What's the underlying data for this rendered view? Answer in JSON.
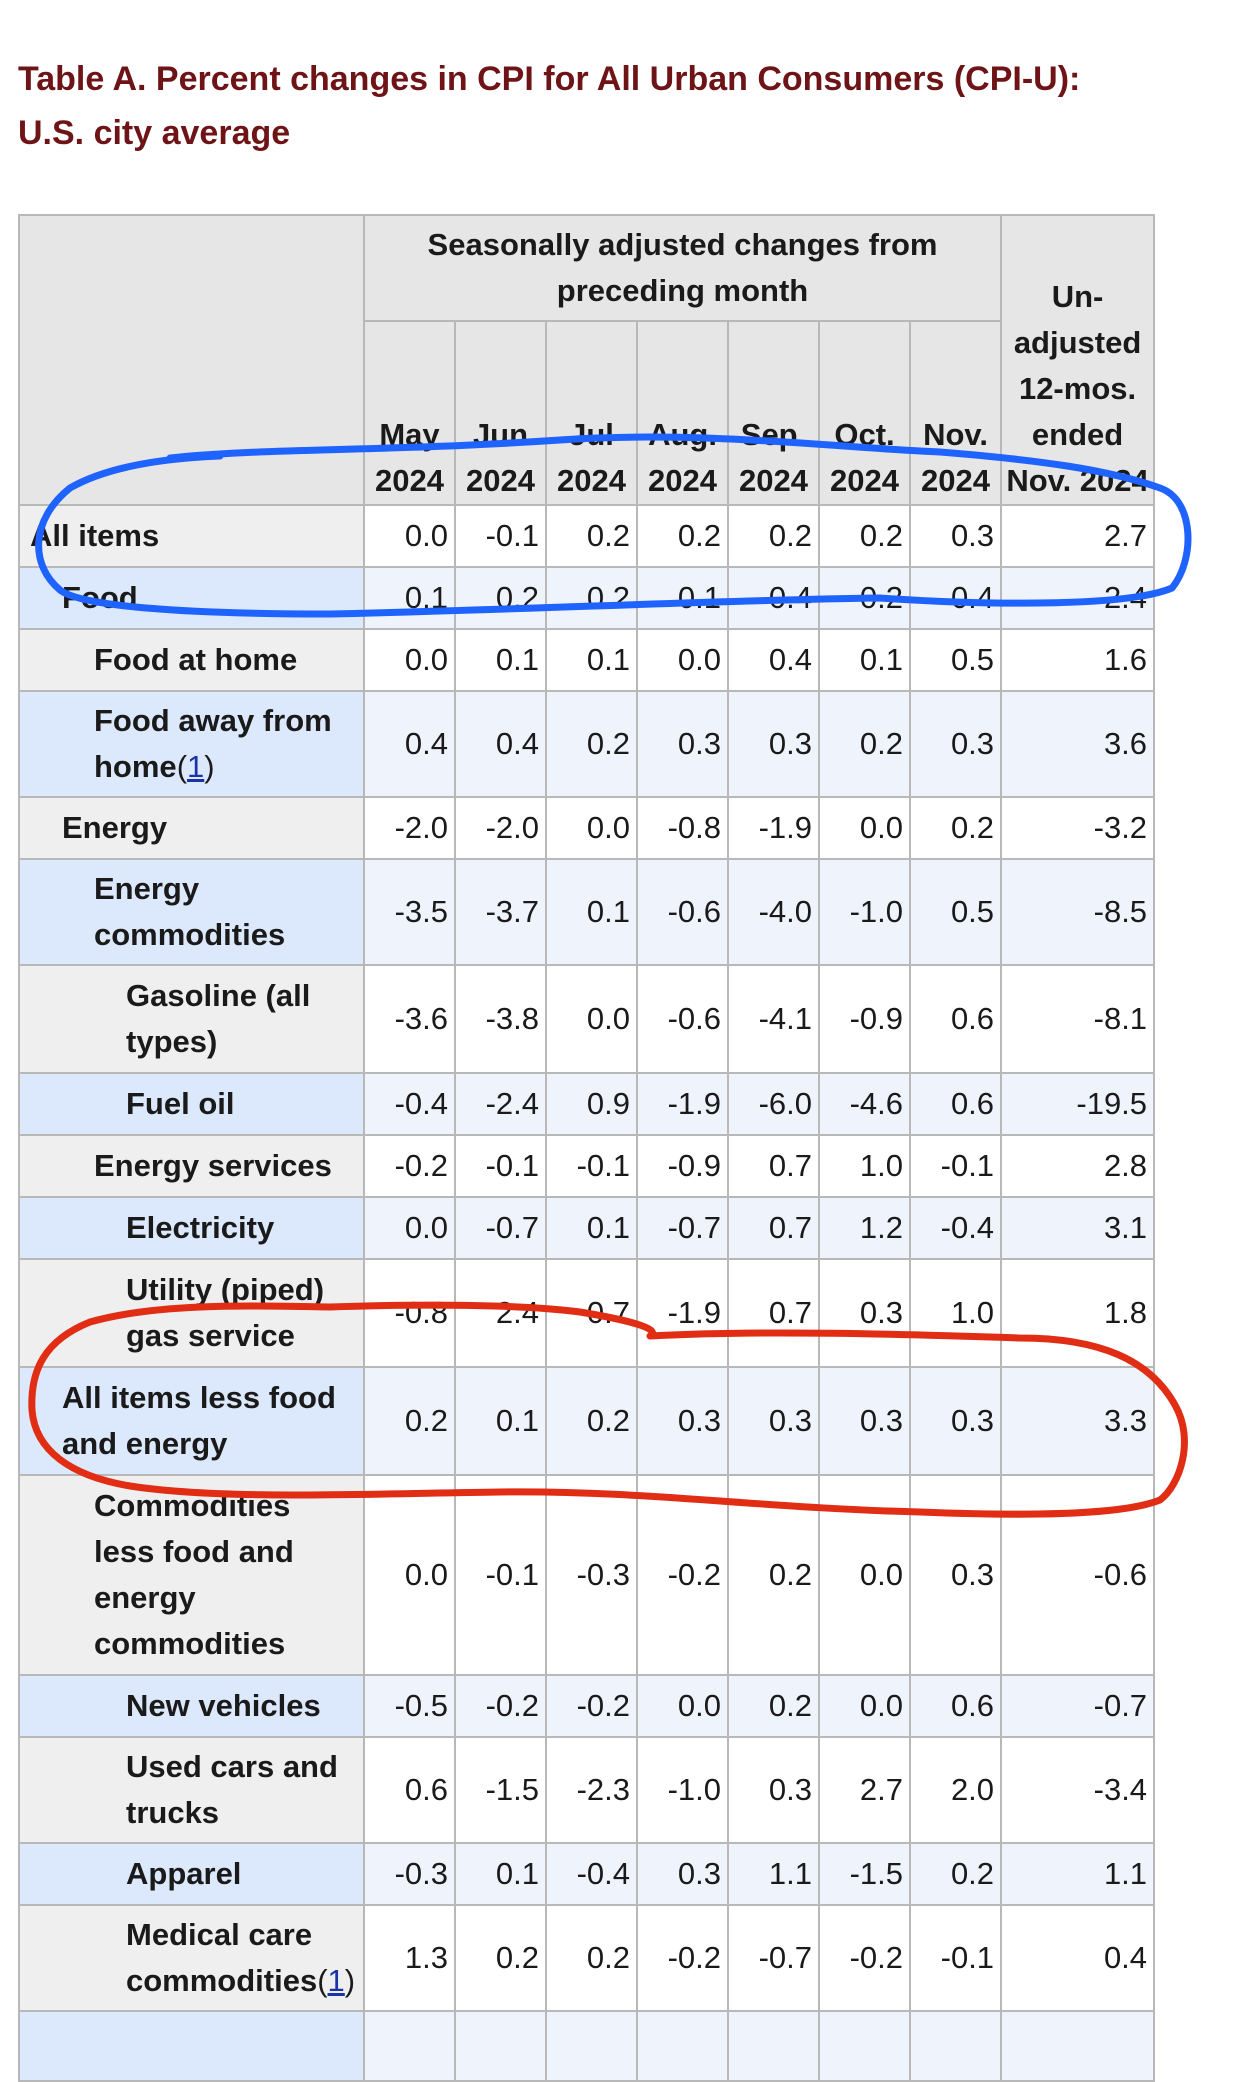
{
  "title": {
    "line1": "Table A. Percent changes in CPI for All Urban Consumers (CPI-U):",
    "line2": "U.S. city average"
  },
  "header": {
    "group_label": "Seasonally adjusted changes from preceding month",
    "unadjusted_label": "Un-adjusted 12-mos. ended Nov. 2024",
    "months": [
      {
        "month": "May",
        "year": "2024"
      },
      {
        "month": "Jun",
        "year": "2024"
      },
      {
        "month": "Jul",
        "year": "2024"
      },
      {
        "month": "Aug.",
        "year": "2024"
      },
      {
        "month": "Sep.",
        "year": "2024"
      },
      {
        "month": "Oct.",
        "year": "2024"
      },
      {
        "month": "Nov.",
        "year": "2024"
      }
    ]
  },
  "rows": [
    {
      "label": "All items",
      "level": 0,
      "values": [
        "0.0",
        "-0.1",
        "0.2",
        "0.2",
        "0.2",
        "0.2",
        "0.3",
        "2.7"
      ]
    },
    {
      "label": "Food",
      "level": 1,
      "values": [
        "0.1",
        "0.2",
        "0.2",
        "0.1",
        "0.4",
        "0.2",
        "0.4",
        "2.4"
      ]
    },
    {
      "label": "Food at home",
      "level": 2,
      "values": [
        "0.0",
        "0.1",
        "0.1",
        "0.0",
        "0.4",
        "0.1",
        "0.5",
        "1.6"
      ]
    },
    {
      "label": "Food away from home",
      "footnote": "1",
      "level": 2,
      "values": [
        "0.4",
        "0.4",
        "0.2",
        "0.3",
        "0.3",
        "0.2",
        "0.3",
        "3.6"
      ]
    },
    {
      "label": "Energy",
      "level": 1,
      "values": [
        "-2.0",
        "-2.0",
        "0.0",
        "-0.8",
        "-1.9",
        "0.0",
        "0.2",
        "-3.2"
      ]
    },
    {
      "label": "Energy commodities",
      "level": 2,
      "values": [
        "-3.5",
        "-3.7",
        "0.1",
        "-0.6",
        "-4.0",
        "-1.0",
        "0.5",
        "-8.5"
      ]
    },
    {
      "label": "Gasoline (all types)",
      "level": 3,
      "values": [
        "-3.6",
        "-3.8",
        "0.0",
        "-0.6",
        "-4.1",
        "-0.9",
        "0.6",
        "-8.1"
      ]
    },
    {
      "label": "Fuel oil",
      "level": 3,
      "values": [
        "-0.4",
        "-2.4",
        "0.9",
        "-1.9",
        "-6.0",
        "-4.6",
        "0.6",
        "-19.5"
      ]
    },
    {
      "label": "Energy services",
      "level": 2,
      "values": [
        "-0.2",
        "-0.1",
        "-0.1",
        "-0.9",
        "0.7",
        "1.0",
        "-0.1",
        "2.8"
      ]
    },
    {
      "label": "Electricity",
      "level": 3,
      "values": [
        "0.0",
        "-0.7",
        "0.1",
        "-0.7",
        "0.7",
        "1.2",
        "-0.4",
        "3.1"
      ]
    },
    {
      "label": "Utility (piped) gas service",
      "level": 3,
      "values": [
        "-0.8",
        "2.4",
        "0.7",
        "-1.9",
        "0.7",
        "0.3",
        "1.0",
        "1.8"
      ]
    },
    {
      "label": "All items less food and energy",
      "level": 1,
      "values": [
        "0.2",
        "0.1",
        "0.2",
        "0.3",
        "0.3",
        "0.3",
        "0.3",
        "3.3"
      ]
    },
    {
      "label": "Commodities less food and energy commodities",
      "level": 2,
      "values": [
        "0.0",
        "-0.1",
        "-0.3",
        "-0.2",
        "0.2",
        "0.0",
        "0.3",
        "-0.6"
      ]
    },
    {
      "label": "New vehicles",
      "level": 3,
      "values": [
        "-0.5",
        "-0.2",
        "-0.2",
        "0.0",
        "0.2",
        "0.0",
        "0.6",
        "-0.7"
      ]
    },
    {
      "label": "Used cars and trucks",
      "level": 3,
      "values": [
        "0.6",
        "-1.5",
        "-2.3",
        "-1.0",
        "0.3",
        "2.7",
        "2.0",
        "-3.4"
      ]
    },
    {
      "label": "Apparel",
      "level": 3,
      "values": [
        "-0.3",
        "0.1",
        "-0.4",
        "0.3",
        "1.1",
        "-1.5",
        "0.2",
        "1.1"
      ]
    },
    {
      "label": "Medical care commodities",
      "footnote": "1",
      "level": 3,
      "values": [
        "1.3",
        "0.2",
        "0.2",
        "-0.2",
        "-0.7",
        "-0.2",
        "-0.1",
        "0.4"
      ]
    },
    {
      "label": "",
      "level": 3,
      "values": [
        "",
        "",
        "",
        "",
        "",
        "",
        "",
        ""
      ]
    }
  ],
  "colors": {
    "title": "#6e1316",
    "header_bg": "#e6e6e6",
    "row_even_stub": "#efefef",
    "row_odd_stub": "#dce8fb",
    "row_odd_cell": "#eef3fc",
    "border": "#b8b8b8",
    "footnote_link": "#1a33a8",
    "annotation_blue": "#1f63ff",
    "annotation_red": "#e02d14"
  },
  "annotations": [
    {
      "name": "blue-highlight",
      "color_key": "annotation_blue",
      "encircles": [
        "All items",
        "Food"
      ]
    },
    {
      "name": "red-highlight",
      "color_key": "annotation_red",
      "encircles": [
        "All items less food and energy"
      ]
    }
  ]
}
